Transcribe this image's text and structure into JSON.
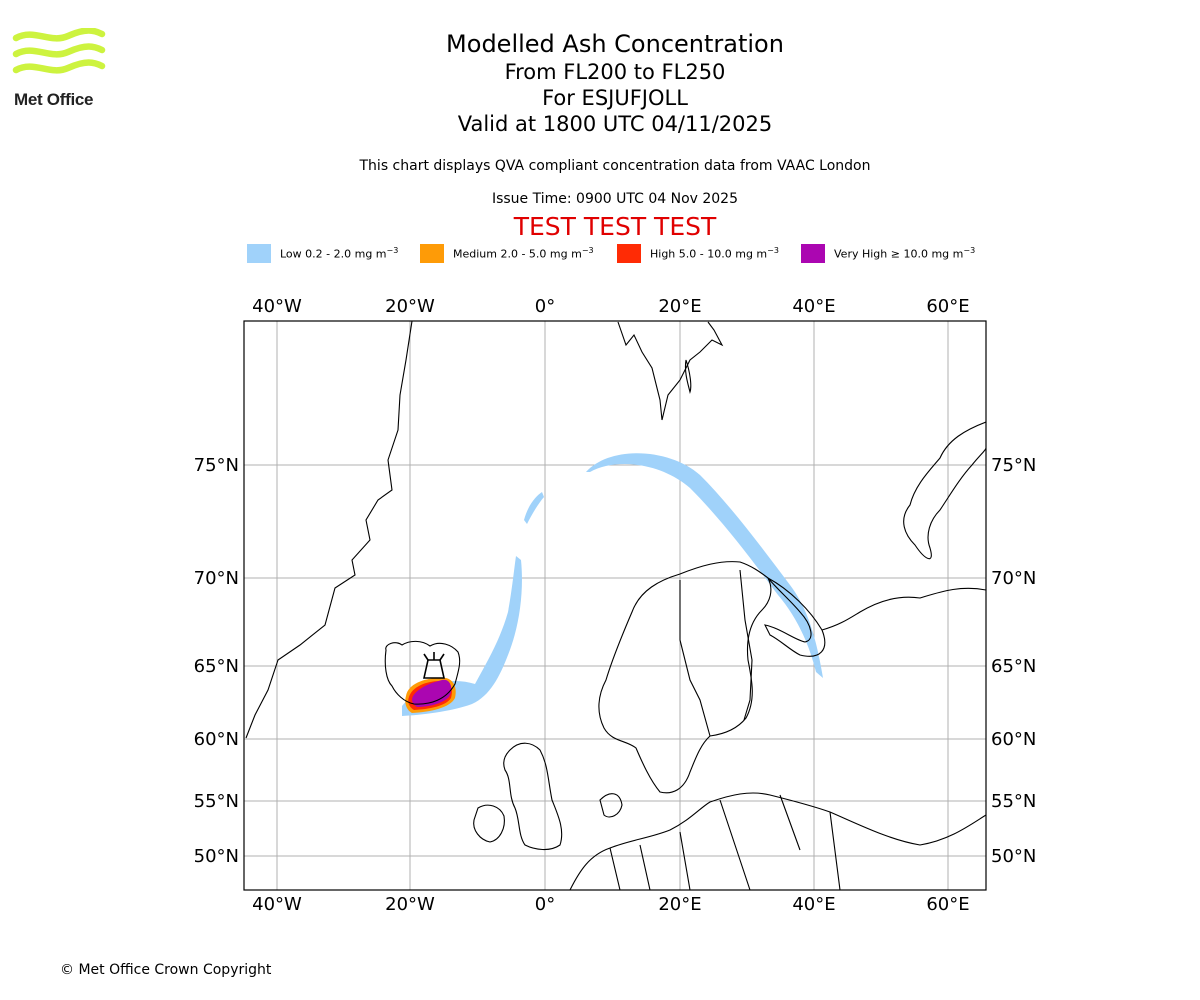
{
  "logo": {
    "name": "Met Office",
    "color": "#cdf33f"
  },
  "titles": {
    "main": "Modelled Ash Concentration",
    "level": "From FL200 to FL250",
    "volcano": "For ESJUFJOLL",
    "valid": "Valid at 1800 UTC 04/11/2025"
  },
  "description": "This chart displays QVA compliant concentration data from VAAC London",
  "issue_time": "Issue Time: 0900 UTC 04 Nov 2025",
  "test_banner": "TEST TEST TEST",
  "legend": [
    {
      "label": "Low 0.2 - 2.0 mg m",
      "exp": "−3",
      "color": "#a0d2fa"
    },
    {
      "label": "Medium 2.0 - 5.0 mg m",
      "exp": "−3",
      "color": "#fe9b07"
    },
    {
      "label": "High 5.0 - 10.0 mg m",
      "exp": "−3",
      "color": "#ff2b05"
    },
    {
      "label": "Very High ≥ 10.0 mg m",
      "exp": "−3",
      "color": "#ab06b1"
    }
  ],
  "map": {
    "lon_labels": [
      "40°W",
      "20°W",
      "0°",
      "20°E",
      "40°E",
      "60°E"
    ],
    "lat_labels": [
      "75°N",
      "70°N",
      "65°N",
      "60°N",
      "55°N",
      "50°N"
    ],
    "volcano_symbol": "volcano-icon"
  },
  "copyright": "© Met Office Crown Copyright"
}
